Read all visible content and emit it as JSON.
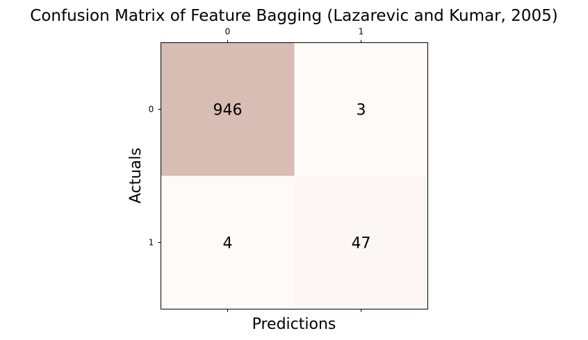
{
  "chart_data": {
    "type": "heatmap",
    "title": "Confusion Matrix of Feature Bagging (Lazarevic and Kumar, 2005)",
    "xlabel": "Predictions",
    "ylabel": "Actuals",
    "x_categories": [
      "0",
      "1"
    ],
    "y_categories": [
      "0",
      "1"
    ],
    "values": [
      [
        946,
        3
      ],
      [
        4,
        47
      ]
    ],
    "x_ticks_position": "top",
    "color_low": "#fefaf8",
    "color_high": "#d8bdb4",
    "grid": false,
    "legend": "none"
  }
}
